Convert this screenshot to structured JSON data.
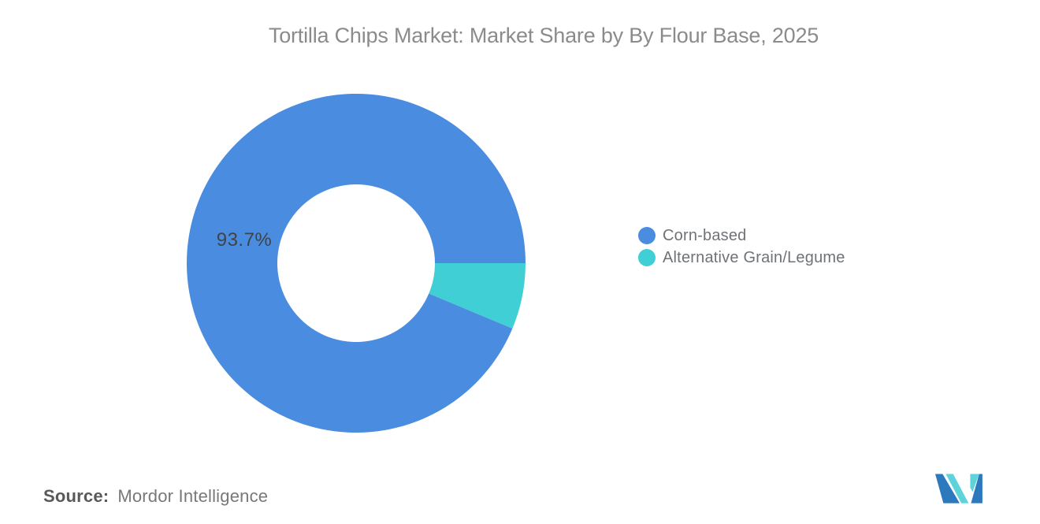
{
  "title": "Tortilla Chips Market: Market Share by By Flour Base, 2025",
  "chart_data": {
    "type": "pie",
    "subtype": "donut",
    "unit": "%",
    "series": [
      {
        "name": "Corn-based",
        "value": 93.7,
        "color": "#4a8de0"
      },
      {
        "name": "Alternative Grain/Legume",
        "value": 6.3,
        "color": "#41cfd6"
      }
    ],
    "data_label": "93.7%",
    "start_angle_east_deg": 0,
    "sweep_direction": "clockwise",
    "inner_radius_ratio": 0.465,
    "legend_position": "right-middle",
    "background": "#ffffff"
  },
  "legend": {
    "items": [
      {
        "label": "Corn-based",
        "color": "#4a8de0"
      },
      {
        "label": "Alternative Grain/Legume",
        "color": "#41cfd6"
      }
    ]
  },
  "source": {
    "label": "Source:",
    "value": "Mordor Intelligence"
  },
  "logo": {
    "name": "Mordor Intelligence",
    "colors": {
      "blue": "#2c79bd",
      "teal": "#5ed3da"
    }
  }
}
